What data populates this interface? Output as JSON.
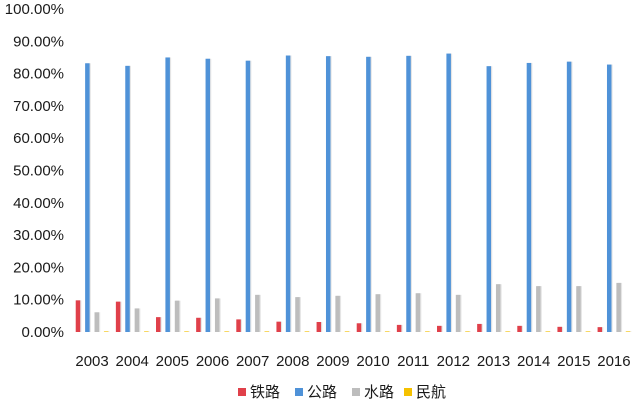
{
  "chart_data": {
    "type": "bar",
    "categories": [
      "2003",
      "2004",
      "2005",
      "2006",
      "2007",
      "2008",
      "2009",
      "2010",
      "2011",
      "2012",
      "2013",
      "2014",
      "2015",
      "2016"
    ],
    "series": [
      {
        "name": "铁路",
        "color": "#e0404a",
        "values": [
          9.8,
          9.4,
          4.6,
          4.4,
          3.9,
          3.2,
          3.1,
          2.7,
          2.2,
          1.9,
          2.5,
          1.9,
          1.6,
          1.5
        ]
      },
      {
        "name": "公路",
        "color": "#4f92d8",
        "values": [
          83.2,
          82.4,
          85.0,
          84.6,
          84.0,
          85.6,
          85.4,
          85.2,
          85.5,
          86.2,
          82.3,
          83.3,
          83.7,
          82.8
        ]
      },
      {
        "name": "水路",
        "color": "#bdbdbd",
        "values": [
          6.1,
          7.3,
          9.7,
          10.4,
          11.5,
          10.8,
          11.2,
          11.7,
          12.0,
          11.5,
          14.8,
          14.2,
          14.2,
          15.2
        ]
      },
      {
        "name": "民航",
        "color": "#f5c100",
        "values": [
          0.01,
          0.01,
          0.01,
          0.01,
          0.01,
          0.01,
          0.01,
          0.01,
          0.01,
          0.01,
          0.01,
          0.01,
          0.01,
          0.01
        ]
      }
    ],
    "y_ticks": [
      "0.00%",
      "10.00%",
      "20.00%",
      "30.00%",
      "40.00%",
      "50.00%",
      "60.00%",
      "70.00%",
      "80.00%",
      "90.00%",
      "100.00%"
    ],
    "ylim": [
      0,
      100
    ],
    "title": "",
    "xlabel": "",
    "ylabel": "",
    "grid": false,
    "legend_position": "bottom"
  }
}
